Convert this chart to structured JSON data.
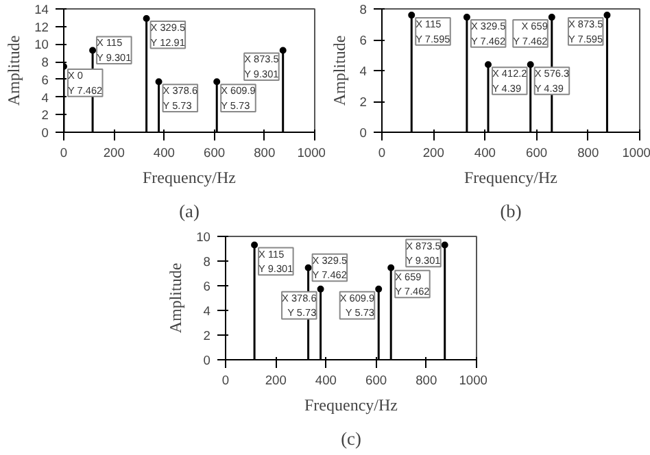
{
  "chart_data": [
    {
      "type": "lollipop",
      "title": "(a)",
      "xlabel": "Frequency/Hz",
      "ylabel": "Amplitude",
      "x": [
        0,
        115,
        329.5,
        378.6,
        609.9,
        873.5
      ],
      "values": [
        7.462,
        9.301,
        12.91,
        5.73,
        5.73,
        9.301
      ],
      "color": "#000000",
      "xlim": [
        0,
        1000
      ],
      "xticks": [
        0,
        200,
        400,
        600,
        800,
        1000
      ],
      "ylim": [
        0,
        14
      ],
      "yticks": [
        0,
        2,
        4,
        6,
        8,
        10,
        12,
        14
      ],
      "marker": "circle",
      "grid": false,
      "annotations": [
        {
          "text": "X 0\nY 7.462",
          "x": 0,
          "y": 7.462
        },
        {
          "text": "X 115\nY 9.301",
          "x": 115,
          "y": 9.301
        },
        {
          "text": "X 329.5\nY 12.91",
          "x": 329.5,
          "y": 12.91
        },
        {
          "text": "X 378.6\nY 5.73",
          "x": 378.6,
          "y": 5.73
        },
        {
          "text": "X 609.9\nY 5.73",
          "x": 609.9,
          "y": 5.73
        },
        {
          "text": "X 873.5\nY 9.301",
          "x": 873.5,
          "y": 9.301
        }
      ]
    },
    {
      "type": "lollipop",
      "title": "(b)",
      "xlabel": "Frequency/Hz",
      "ylabel": "Amplitude",
      "x": [
        115,
        329.5,
        412.2,
        576.3,
        659,
        873.5
      ],
      "values": [
        7.595,
        7.462,
        4.39,
        4.39,
        7.462,
        7.595
      ],
      "color": "#000000",
      "xlim": [
        0,
        1000
      ],
      "xticks": [
        0,
        200,
        400,
        600,
        800,
        1000
      ],
      "ylim": [
        0,
        8
      ],
      "yticks": [
        0,
        2,
        4,
        6,
        8
      ],
      "marker": "circle",
      "grid": false,
      "annotations": [
        {
          "text": "X 115\nY 7.595",
          "x": 115,
          "y": 7.595
        },
        {
          "text": "X 329.5\nY 7.462",
          "x": 329.5,
          "y": 7.462
        },
        {
          "text": "X 412.2\nY 4.39",
          "x": 412.2,
          "y": 4.39
        },
        {
          "text": "X 576.3\nY 4.39",
          "x": 576.3,
          "y": 4.39
        },
        {
          "text": "X 659\nY 7.462",
          "x": 659,
          "y": 7.462
        },
        {
          "text": "X 873.5\nY 7.595",
          "x": 873.5,
          "y": 7.595
        }
      ]
    },
    {
      "type": "lollipop",
      "title": "(c)",
      "xlabel": "Frequency/Hz",
      "ylabel": "Amplitude",
      "x": [
        115,
        329.5,
        378.6,
        609.9,
        659,
        873.5
      ],
      "values": [
        9.301,
        7.462,
        5.73,
        5.73,
        7.462,
        9.301
      ],
      "color": "#000000",
      "xlim": [
        0,
        1000
      ],
      "xticks": [
        0,
        200,
        400,
        600,
        800,
        1000
      ],
      "ylim": [
        0,
        10
      ],
      "yticks": [
        0,
        2,
        4,
        6,
        8,
        10
      ],
      "marker": "circle",
      "grid": false,
      "annotations": [
        {
          "text": "X 115\nY 9.301",
          "x": 115,
          "y": 9.301
        },
        {
          "text": "X 329.5\nY 7.462",
          "x": 329.5,
          "y": 7.462
        },
        {
          "text": "X 378.6\nY 5.73",
          "x": 378.6,
          "y": 5.73
        },
        {
          "text": "X 609.9\nY 5.73",
          "x": 609.9,
          "y": 5.73
        },
        {
          "text": "X 659\nY 7.462",
          "x": 659,
          "y": 7.462
        },
        {
          "text": "X 873.5\nY 9.301",
          "x": 873.5,
          "y": 9.301
        }
      ]
    }
  ]
}
